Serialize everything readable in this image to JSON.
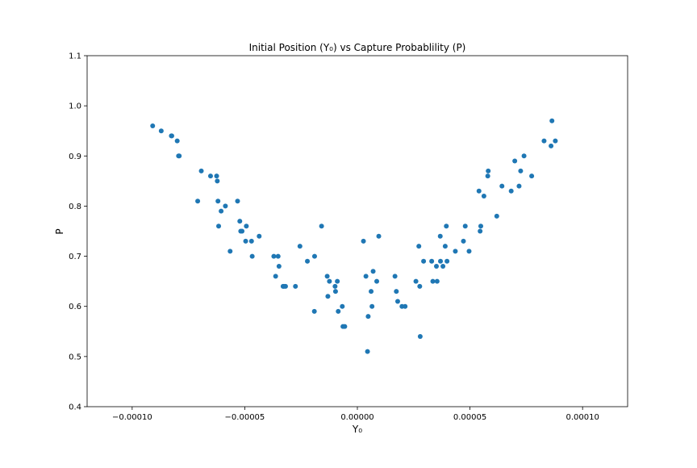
{
  "chart_data": {
    "type": "scatter",
    "title": "Initial Position (Y₀) vs Capture Probablility (P)",
    "xlabel": "Y₀",
    "ylabel": "P",
    "xlim": [
      -0.00012,
      0.00012
    ],
    "ylim": [
      0.4,
      1.1
    ],
    "xticks": [
      -0.0001,
      -5e-05,
      0.0,
      5e-05,
      0.0001
    ],
    "xtick_labels": [
      "−0.00010",
      "−0.00005",
      "0.00000",
      "0.00005",
      "0.00010"
    ],
    "yticks": [
      0.4,
      0.5,
      0.6,
      0.7,
      0.8,
      0.9,
      1.0,
      1.1
    ],
    "ytick_labels": [
      "0.4",
      "0.5",
      "0.6",
      "0.7",
      "0.8",
      "0.9",
      "1.0",
      "1.1"
    ],
    "grid": false,
    "marker_color": "#1f77b4",
    "series": [
      {
        "points": [
          [
            -9.09e-05,
            0.96
          ],
          [
            -8.71e-05,
            0.95
          ],
          [
            -8.26e-05,
            0.94
          ],
          [
            -8.24e-05,
            0.94
          ],
          [
            -8e-05,
            0.93
          ],
          [
            -7.94e-05,
            0.9
          ],
          [
            -7.91e-05,
            0.9
          ],
          [
            -7.09e-05,
            0.81
          ],
          [
            -6.93e-05,
            0.87
          ],
          [
            -6.52e-05,
            0.86
          ],
          [
            -6.25e-05,
            0.86
          ],
          [
            -6.22e-05,
            0.85
          ],
          [
            -6.19e-05,
            0.81
          ],
          [
            -6.16e-05,
            0.76
          ],
          [
            -6.05e-05,
            0.79
          ],
          [
            -5.86e-05,
            0.8
          ],
          [
            -5.65e-05,
            0.71
          ],
          [
            -5.32e-05,
            0.81
          ],
          [
            -5.22e-05,
            0.77
          ],
          [
            -5.18e-05,
            0.75
          ],
          [
            -5.12e-05,
            0.75
          ],
          [
            -4.96e-05,
            0.73
          ],
          [
            -4.93e-05,
            0.76
          ],
          [
            -4.7e-05,
            0.73
          ],
          [
            -4.67e-05,
            0.7
          ],
          [
            -4.36e-05,
            0.74
          ],
          [
            -3.71e-05,
            0.7
          ],
          [
            -3.63e-05,
            0.66
          ],
          [
            -3.52e-05,
            0.7
          ],
          [
            -3.48e-05,
            0.68
          ],
          [
            -3.3e-05,
            0.64
          ],
          [
            -3.26e-05,
            0.64
          ],
          [
            -3.19e-05,
            0.64
          ],
          [
            -2.75e-05,
            0.64
          ],
          [
            -2.55e-05,
            0.72
          ],
          [
            -2.22e-05,
            0.69
          ],
          [
            -1.91e-05,
            0.59
          ],
          [
            -1.9e-05,
            0.7
          ],
          [
            -1.59e-05,
            0.76
          ],
          [
            -1.34e-05,
            0.66
          ],
          [
            -1.31e-05,
            0.62
          ],
          [
            -1.24e-05,
            0.65
          ],
          [
            -9.9e-06,
            0.64
          ],
          [
            -9.7e-06,
            0.63
          ],
          [
            -8.9e-06,
            0.65
          ],
          [
            -8.5e-06,
            0.59
          ],
          [
            -6.7e-06,
            0.6
          ],
          [
            -6.4e-06,
            0.56
          ],
          [
            -5.6e-06,
            0.56
          ],
          [
            2.7e-06,
            0.73
          ],
          [
            3.8e-06,
            0.66
          ],
          [
            4.5e-06,
            0.51
          ],
          [
            4.8e-06,
            0.58
          ],
          [
            6.1e-06,
            0.63
          ],
          [
            6.5e-06,
            0.6
          ],
          [
            7e-06,
            0.67
          ],
          [
            8.6e-06,
            0.65
          ],
          [
            9.5e-06,
            0.74
          ],
          [
            1.67e-05,
            0.66
          ],
          [
            1.73e-05,
            0.63
          ],
          [
            1.79e-05,
            0.61
          ],
          [
            1.98e-05,
            0.6
          ],
          [
            2.12e-05,
            0.6
          ],
          [
            2.6e-05,
            0.65
          ],
          [
            2.73e-05,
            0.72
          ],
          [
            2.77e-05,
            0.64
          ],
          [
            2.79e-05,
            0.54
          ],
          [
            2.94e-05,
            0.69
          ],
          [
            3.3e-05,
            0.69
          ],
          [
            3.35e-05,
            0.65
          ],
          [
            3.51e-05,
            0.68
          ],
          [
            3.54e-05,
            0.65
          ],
          [
            3.68e-05,
            0.74
          ],
          [
            3.69e-05,
            0.69
          ],
          [
            3.8e-05,
            0.68
          ],
          [
            3.9e-05,
            0.72
          ],
          [
            3.95e-05,
            0.76
          ],
          [
            3.98e-05,
            0.69
          ],
          [
            4.35e-05,
            0.71
          ],
          [
            4.71e-05,
            0.73
          ],
          [
            4.79e-05,
            0.76
          ],
          [
            4.96e-05,
            0.71
          ],
          [
            5.4e-05,
            0.83
          ],
          [
            5.45e-05,
            0.75
          ],
          [
            5.48e-05,
            0.76
          ],
          [
            5.62e-05,
            0.82
          ],
          [
            5.79e-05,
            0.86
          ],
          [
            5.81e-05,
            0.87
          ],
          [
            6.19e-05,
            0.78
          ],
          [
            6.42e-05,
            0.84
          ],
          [
            6.83e-05,
            0.83
          ],
          [
            6.99e-05,
            0.89
          ],
          [
            7.18e-05,
            0.84
          ],
          [
            7.25e-05,
            0.87
          ],
          [
            7.4e-05,
            0.9
          ],
          [
            7.74e-05,
            0.86
          ],
          [
            8.29e-05,
            0.93
          ],
          [
            8.6e-05,
            0.92
          ],
          [
            8.64e-05,
            0.97
          ],
          [
            8.79e-05,
            0.93
          ]
        ]
      }
    ]
  }
}
